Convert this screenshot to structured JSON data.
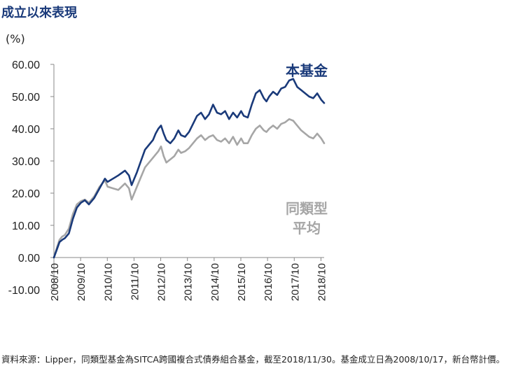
{
  "title": "成立以來表現",
  "unit_label": "(%)",
  "footnote": "資料來源：Lipper，同類型基金為SITCA跨國複合式債券組合基金，截至2018/11/30。基金成立日為2008/10/17，新台幣計價。",
  "colors": {
    "fund": "#1a3a7a",
    "peer_average": "#a6a6a6"
  },
  "chart_data": {
    "type": "line",
    "title": "成立以來表現",
    "ylabel": "(%)",
    "xlabel": "",
    "ylim": [
      -10,
      60
    ],
    "ytick_labels": [
      "60.00",
      "50.00",
      "40.00",
      "30.00",
      "20.00",
      "10.00",
      "0.00",
      "-10.00"
    ],
    "ytick_values": [
      60,
      50,
      40,
      30,
      20,
      10,
      0,
      -10
    ],
    "xtick_labels": [
      "2008/10",
      "2009/10",
      "2010/10",
      "2011/10",
      "2012/10",
      "2013/10",
      "2014/10",
      "2015/10",
      "2016/10",
      "2017/10",
      "2018/10"
    ],
    "xtick_values": [
      2008.79,
      2009.79,
      2010.79,
      2011.79,
      2012.79,
      2013.79,
      2014.79,
      2015.79,
      2016.79,
      2017.79,
      2018.79
    ],
    "xlim": [
      2008.79,
      2018.91
    ],
    "grid": false,
    "series": [
      {
        "name": "本基金",
        "x": [
          2008.79,
          2008.9,
          2009.0,
          2009.1,
          2009.2,
          2009.35,
          2009.5,
          2009.65,
          2009.8,
          2009.95,
          2010.1,
          2010.3,
          2010.5,
          2010.7,
          2010.8,
          2011.0,
          2011.2,
          2011.45,
          2011.6,
          2011.7,
          2011.8,
          2011.9,
          2012.05,
          2012.2,
          2012.35,
          2012.5,
          2012.6,
          2012.7,
          2012.8,
          2012.9,
          2013.0,
          2013.15,
          2013.3,
          2013.45,
          2013.55,
          2013.7,
          2013.85,
          2014.0,
          2014.15,
          2014.3,
          2014.45,
          2014.6,
          2014.75,
          2014.9,
          2015.05,
          2015.2,
          2015.35,
          2015.5,
          2015.65,
          2015.8,
          2015.9,
          2016.05,
          2016.2,
          2016.35,
          2016.5,
          2016.65,
          2016.75,
          2016.85,
          2017.0,
          2017.15,
          2017.3,
          2017.45,
          2017.6,
          2017.75,
          2017.9,
          2018.05,
          2018.2,
          2018.35,
          2018.5,
          2018.65,
          2018.8,
          2018.91
        ],
        "values": [
          0.0,
          2.5,
          4.8,
          5.5,
          6.0,
          7.5,
          12.0,
          15.5,
          17.0,
          17.8,
          16.5,
          18.5,
          21.5,
          24.5,
          23.5,
          24.5,
          25.5,
          27.0,
          25.5,
          22.5,
          24.5,
          26.5,
          30.0,
          33.5,
          35.0,
          36.5,
          38.5,
          40.0,
          41.0,
          38.5,
          36.5,
          35.5,
          37.0,
          39.5,
          38.0,
          37.5,
          39.0,
          41.5,
          44.0,
          45.0,
          43.0,
          44.5,
          47.5,
          45.0,
          44.5,
          45.5,
          43.0,
          45.0,
          43.5,
          45.5,
          44.0,
          43.5,
          47.5,
          51.0,
          52.0,
          49.5,
          48.5,
          50.0,
          51.5,
          50.5,
          52.5,
          53.0,
          55.0,
          55.5,
          53.0,
          52.0,
          51.0,
          50.0,
          49.5,
          51.0,
          49.0,
          48.0
        ]
      },
      {
        "name": "同類型平均",
        "x": [
          2008.79,
          2008.9,
          2009.0,
          2009.1,
          2009.2,
          2009.35,
          2009.5,
          2009.65,
          2009.8,
          2009.95,
          2010.1,
          2010.3,
          2010.5,
          2010.7,
          2010.8,
          2011.0,
          2011.2,
          2011.45,
          2011.6,
          2011.7,
          2011.8,
          2011.9,
          2012.05,
          2012.2,
          2012.35,
          2012.5,
          2012.6,
          2012.7,
          2012.8,
          2012.9,
          2013.0,
          2013.15,
          2013.3,
          2013.45,
          2013.55,
          2013.7,
          2013.85,
          2014.0,
          2014.15,
          2014.3,
          2014.45,
          2014.6,
          2014.75,
          2014.9,
          2015.05,
          2015.2,
          2015.35,
          2015.5,
          2015.65,
          2015.8,
          2015.9,
          2016.05,
          2016.2,
          2016.35,
          2016.5,
          2016.65,
          2016.75,
          2016.85,
          2017.0,
          2017.15,
          2017.3,
          2017.45,
          2017.6,
          2017.75,
          2017.9,
          2018.05,
          2018.2,
          2018.35,
          2018.5,
          2018.65,
          2018.8,
          2018.91
        ],
        "values": [
          0.0,
          3.0,
          5.5,
          6.5,
          7.0,
          9.0,
          13.5,
          16.5,
          17.5,
          18.0,
          17.0,
          19.0,
          22.0,
          24.0,
          22.0,
          21.5,
          21.0,
          23.0,
          21.5,
          18.0,
          20.0,
          22.0,
          25.0,
          28.0,
          29.5,
          31.0,
          32.0,
          33.0,
          34.5,
          31.5,
          29.5,
          30.5,
          31.5,
          33.5,
          32.5,
          33.0,
          34.0,
          35.5,
          37.0,
          38.0,
          36.5,
          37.5,
          38.0,
          36.5,
          36.0,
          37.0,
          35.5,
          37.5,
          35.0,
          37.0,
          35.5,
          35.5,
          38.0,
          40.0,
          41.0,
          39.5,
          39.0,
          40.0,
          41.0,
          40.0,
          41.5,
          42.0,
          43.0,
          42.5,
          41.0,
          39.5,
          38.5,
          37.5,
          37.0,
          38.5,
          37.0,
          35.5
        ]
      }
    ]
  }
}
